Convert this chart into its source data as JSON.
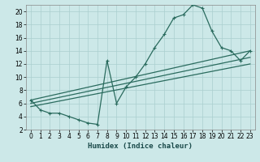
{
  "xlabel": "Humidex (Indice chaleur)",
  "xlim": [
    -0.5,
    23.5
  ],
  "ylim": [
    2,
    21
  ],
  "yticks": [
    2,
    4,
    6,
    8,
    10,
    12,
    14,
    16,
    18,
    20
  ],
  "xticks": [
    0,
    1,
    2,
    3,
    4,
    5,
    6,
    7,
    8,
    9,
    10,
    11,
    12,
    13,
    14,
    15,
    16,
    17,
    18,
    19,
    20,
    21,
    22,
    23
  ],
  "bg_color": "#cce8e8",
  "line_color": "#2a6b5e",
  "grid_color": "#aacfcf",
  "curve1_x": [
    0,
    1,
    2,
    3,
    4,
    5,
    6,
    7,
    8,
    9,
    10,
    11,
    12,
    13,
    14,
    15,
    16,
    17,
    18,
    19,
    20,
    21,
    22,
    23
  ],
  "curve1_y": [
    6.5,
    5.0,
    4.5,
    4.5,
    4.0,
    3.5,
    3.0,
    2.8,
    12.5,
    6.0,
    8.5,
    10.0,
    12.0,
    14.5,
    16.5,
    19.0,
    19.5,
    21.0,
    20.5,
    17.0,
    14.5,
    14.0,
    12.5,
    14.0
  ],
  "line1_x": [
    0,
    23
  ],
  "line1_y": [
    6.5,
    14.0
  ],
  "line2_x": [
    0,
    23
  ],
  "line2_y": [
    6.0,
    13.0
  ],
  "line3_x": [
    0,
    23
  ],
  "line3_y": [
    5.5,
    12.0
  ]
}
